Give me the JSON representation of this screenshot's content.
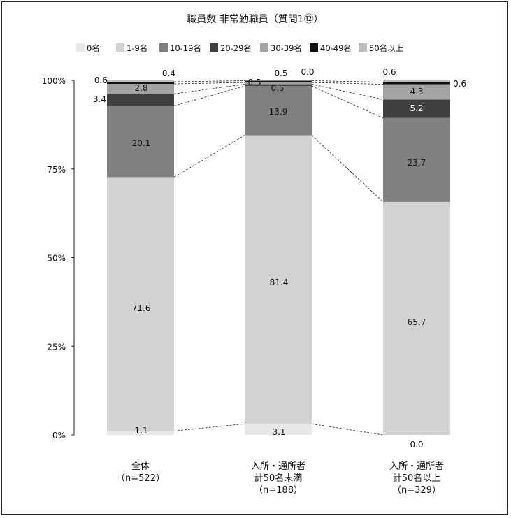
{
  "chart_data": {
    "type": "bar",
    "stacked": true,
    "percent": true,
    "title": "職員数 非常勤職員（質問1⑫）",
    "categories": [
      [
        "全体",
        "（n=522）"
      ],
      [
        "入所・通所者",
        "計50名未満",
        "（n=188）"
      ],
      [
        "入所・通所者",
        "計50名以上",
        "（n=329）"
      ]
    ],
    "series": [
      {
        "name": "0名",
        "values": [
          1.1,
          3.1,
          0.0
        ],
        "color": "#e8e8e8"
      },
      {
        "name": "1-9名",
        "values": [
          71.6,
          81.4,
          65.7
        ],
        "color": "#d2d2d2"
      },
      {
        "name": "10-19名",
        "values": [
          20.1,
          13.9,
          23.7
        ],
        "color": "#808080"
      },
      {
        "name": "20-29名",
        "values": [
          3.4,
          0.5,
          5.2
        ],
        "color": "#404040"
      },
      {
        "name": "30-39名",
        "values": [
          2.8,
          0.5,
          4.3
        ],
        "color": "#a3a3a3"
      },
      {
        "name": "40-49名",
        "values": [
          0.6,
          0.5,
          0.6
        ],
        "color": "#111111"
      },
      {
        "name": "50名以上",
        "values": [
          0.4,
          0.0,
          0.6
        ],
        "color": "#bdbdbd"
      }
    ],
    "value_labels": [
      [
        "1.1",
        "71.6",
        "20.1",
        "3.4",
        "2.8",
        "0.6",
        "0.4"
      ],
      [
        "3.1",
        "81.4",
        "13.9",
        "0.5",
        "0.5",
        "0.5",
        "0.0"
      ],
      [
        "0.0",
        "65.7",
        "23.7",
        "5.2",
        "4.3",
        "0.6",
        "0.6"
      ]
    ],
    "y_ticks": [
      "0%",
      "25%",
      "50%",
      "75%",
      "100%"
    ],
    "ylim": [
      0,
      100
    ],
    "legend_position": "top",
    "series_lines": "dashed",
    "grid": false
  }
}
